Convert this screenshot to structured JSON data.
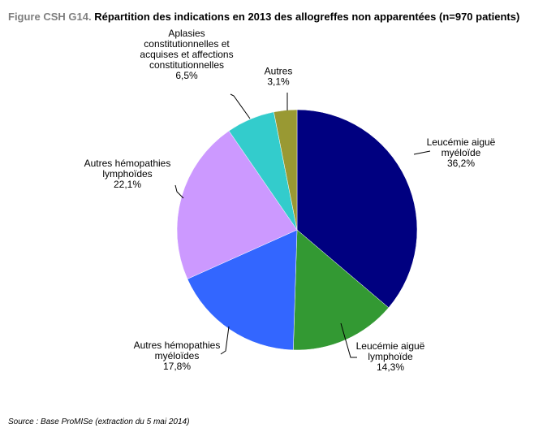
{
  "title": {
    "prefix": "Figure CSH G14.",
    "text": "Répartition des indications en 2013 des allogreffes non apparentées (n=970 patients)"
  },
  "source": "Source : Base ProMISe (extraction du 5 mai 2014)",
  "chart_data": {
    "type": "pie",
    "title": "Figure CSH G14. Répartition des indications en 2013 des allogreffes non apparentées (n=970 patients)",
    "slices": [
      {
        "label_lines": [
          "Leucémie aiguë",
          "myéloïde"
        ],
        "value": 36.2,
        "value_label": "36,2%",
        "color": "#000080"
      },
      {
        "label_lines": [
          "Leucémie aiguë",
          "lymphoïde"
        ],
        "value": 14.3,
        "value_label": "14,3%",
        "color": "#339933"
      },
      {
        "label_lines": [
          "Autres hémopathies",
          "myéloïdes"
        ],
        "value": 17.8,
        "value_label": "17,8%",
        "color": "#3366ff"
      },
      {
        "label_lines": [
          "Autres hémopathies",
          "lymphoïdes"
        ],
        "value": 22.1,
        "value_label": "22,1%",
        "color": "#cc99ff"
      },
      {
        "label_lines": [
          "Aplasies",
          "constitutionnelles et",
          "acquises et affections",
          "constitutionnelles"
        ],
        "value": 6.5,
        "value_label": "6,5%",
        "color": "#33cccc"
      },
      {
        "label_lines": [
          "Autres"
        ],
        "value": 3.1,
        "value_label": "3,1%",
        "color": "#999933"
      }
    ]
  }
}
